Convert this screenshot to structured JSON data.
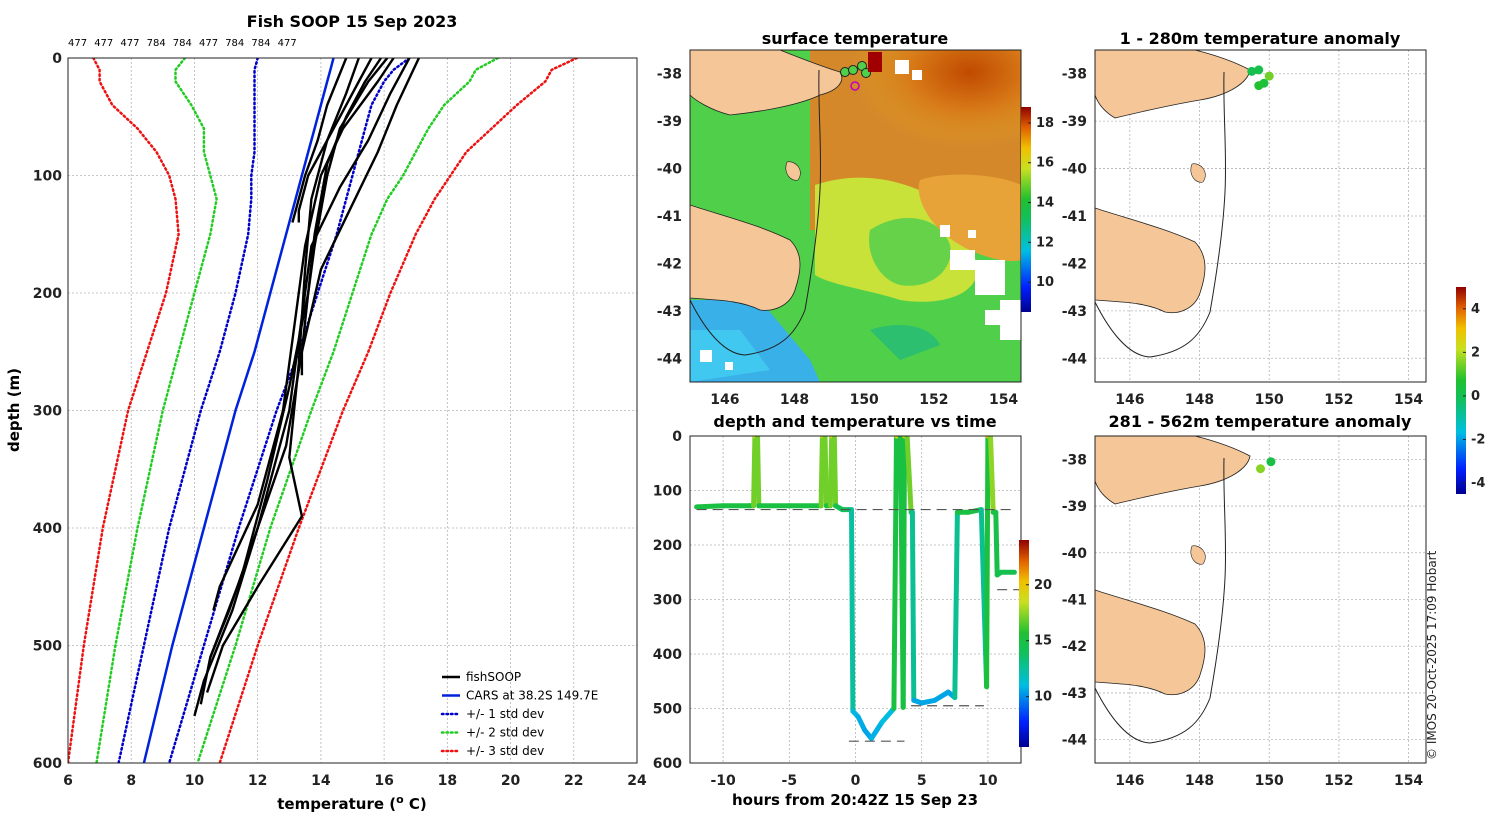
{
  "figure_title": "Fish SOOP 15 Sep 2023",
  "copyright": "© IMOS 20-Oct-2025 17:09 Hobart",
  "colors": {
    "land": "#f5c697",
    "obs": "#000000",
    "cars": "#0022dd",
    "std1": "#0000cc",
    "std2": "#22cc22",
    "std3": "#ee1111"
  },
  "chart_data": [
    {
      "id": "profile",
      "type": "line",
      "title": "Fish SOOP 15 Sep 2023",
      "xlabel": "temperature (",
      "xlabel_sup": "o",
      "xlabel_end": " C)",
      "ylabel": "depth (m)",
      "xlim": [
        6,
        24
      ],
      "ylim": [
        0,
        600
      ],
      "xticks": [
        6,
        8,
        10,
        12,
        14,
        16,
        18,
        20,
        22,
        24
      ],
      "yticks": [
        0,
        100,
        200,
        300,
        400,
        500,
        600
      ],
      "top_labels": [
        "477",
        "477",
        "477",
        "784",
        "784",
        "477",
        "784",
        "784",
        "477"
      ],
      "legend": [
        "fishSOOP",
        "CARS at 38.2S 149.7E",
        "+/- 1 std dev",
        "+/- 2 std dev",
        "+/- 3 std dev"
      ],
      "depth": [
        0,
        10,
        20,
        40,
        60,
        80,
        100,
        120,
        150,
        200,
        250,
        300,
        400,
        500,
        600
      ],
      "cars_mean": [
        14.4,
        14.3,
        14.2,
        14.0,
        13.8,
        13.6,
        13.4,
        13.2,
        12.9,
        12.4,
        11.9,
        11.3,
        10.3,
        9.3,
        8.4
      ],
      "std1_low": [
        12.0,
        11.9,
        11.9,
        11.9,
        11.9,
        11.9,
        11.8,
        11.8,
        11.7,
        11.3,
        10.8,
        10.2,
        9.2,
        8.4,
        7.6
      ],
      "std1_high": [
        16.8,
        16.3,
        16.0,
        15.6,
        15.4,
        15.2,
        15.0,
        14.8,
        14.5,
        13.9,
        13.3,
        12.6,
        11.4,
        10.3,
        9.2
      ],
      "std2_low": [
        9.7,
        9.4,
        9.4,
        9.9,
        10.3,
        10.3,
        10.5,
        10.7,
        10.5,
        10.0,
        9.5,
        9.0,
        8.2,
        7.5,
        6.9
      ],
      "std2_high": [
        19.6,
        18.9,
        18.7,
        17.9,
        17.4,
        17.0,
        16.6,
        16.1,
        15.6,
        15.0,
        14.4,
        13.7,
        12.4,
        11.3,
        10.1
      ],
      "std3_low": [
        6.8,
        7.0,
        7.0,
        7.4,
        8.2,
        8.8,
        9.2,
        9.4,
        9.5,
        9.1,
        8.5,
        7.9,
        7.1,
        6.5,
        6.0
      ],
      "std3_high": [
        22.1,
        21.3,
        21.1,
        20.2,
        19.4,
        18.6,
        18.1,
        17.6,
        17.0,
        16.2,
        15.5,
        14.7,
        13.3,
        12.0,
        10.8
      ],
      "fish_profiles": [
        {
          "d": [
            0,
            20,
            40,
            70,
            100,
            130,
            140
          ],
          "t": [
            14.8,
            14.5,
            14.2,
            13.9,
            13.5,
            13.2,
            13.1
          ]
        },
        {
          "d": [
            0,
            20,
            50,
            80,
            100,
            130,
            140
          ],
          "t": [
            15.6,
            15.2,
            14.6,
            14.0,
            13.6,
            13.3,
            13.3
          ]
        },
        {
          "d": [
            0,
            20,
            50,
            90,
            150,
            200,
            250,
            270
          ],
          "t": [
            15.9,
            15.4,
            14.8,
            14.2,
            13.8,
            13.6,
            13.4,
            13.4
          ]
        },
        {
          "d": [
            0,
            20,
            60,
            100,
            160,
            220,
            300,
            380,
            450,
            470
          ],
          "t": [
            16.3,
            15.8,
            14.7,
            14.0,
            13.5,
            13.2,
            12.8,
            12.0,
            10.8,
            10.6
          ]
        },
        {
          "d": [
            0,
            30,
            70,
            110,
            160,
            220,
            300,
            400,
            470,
            510
          ],
          "t": [
            16.8,
            16.2,
            15.5,
            14.6,
            13.7,
            13.4,
            13.0,
            12.0,
            11.1,
            10.5
          ]
        },
        {
          "d": [
            0,
            40,
            80,
            130,
            180,
            250,
            330,
            400,
            470,
            530,
            560
          ],
          "t": [
            17.1,
            16.4,
            15.8,
            14.9,
            14.0,
            13.4,
            12.9,
            12.0,
            11.2,
            10.3,
            10.0
          ]
        },
        {
          "d": [
            0,
            20,
            60,
            100,
            160,
            200,
            280,
            360,
            440,
            510,
            550
          ],
          "t": [
            16.1,
            15.5,
            14.6,
            14.2,
            13.8,
            13.6,
            13.0,
            12.3,
            11.5,
            10.5,
            10.2
          ]
        },
        {
          "d": [
            0,
            30,
            70,
            120,
            180,
            260,
            340,
            390,
            450,
            500,
            540
          ],
          "t": [
            15.2,
            14.8,
            14.2,
            13.7,
            13.5,
            13.3,
            13.0,
            13.4,
            12.0,
            10.9,
            10.4
          ]
        }
      ]
    },
    {
      "id": "sst_map",
      "type": "heatmap",
      "title": "surface temperature",
      "xticks": [
        "146",
        "148",
        "150",
        "152",
        "154"
      ],
      "yticks": [
        "-38",
        "-39",
        "-40",
        "-41",
        "-42",
        "-43",
        "-44"
      ],
      "xlim": [
        145,
        154.5
      ],
      "ylim": [
        -44.5,
        -37.5
      ],
      "colorbar_ticks": [
        "10",
        "12",
        "14",
        "16",
        "18"
      ],
      "colorbar_range": [
        8.5,
        18.8
      ]
    },
    {
      "id": "depth_time",
      "type": "line",
      "title": "depth and temperature vs time",
      "xlabel": "hours from 20:42Z 15 Sep 23",
      "xlim": [
        -12.5,
        12.5
      ],
      "ylim": [
        0,
        600
      ],
      "xticks": [
        -10,
        -5,
        0,
        5,
        10
      ],
      "yticks": [
        0,
        100,
        200,
        300,
        400,
        500,
        600
      ],
      "colorbar_ticks": [
        "10",
        "15",
        "20"
      ],
      "colorbar_range": [
        5.5,
        24
      ],
      "track_hours": [
        -12.0,
        -10,
        -8,
        -7.7,
        -7.6,
        -7.4,
        -7.3,
        -5,
        -2.6,
        -2.5,
        -2.3,
        -2.2,
        -1.9,
        -1.8,
        -1.6,
        -1.5,
        -1.0,
        -0.5,
        -0.3,
        -0.2,
        0.2,
        0.7,
        1.2,
        2.0,
        2.9,
        3.1,
        3.4,
        3.6,
        3.7,
        3.9,
        4.2,
        4.3,
        4.4,
        5.0,
        6.0,
        7.0,
        7.5,
        7.7,
        7.9,
        8.5,
        9.5,
        9.9,
        10.0,
        10.2,
        10.4,
        10.6,
        10.7,
        11.0,
        12.0
      ],
      "track_depth": [
        130,
        128,
        128,
        128,
        0,
        0,
        128,
        128,
        128,
        0,
        0,
        128,
        128,
        0,
        0,
        128,
        135,
        135,
        135,
        505,
        515,
        540,
        555,
        525,
        500,
        0,
        0,
        498,
        0,
        0,
        140,
        140,
        485,
        490,
        485,
        470,
        480,
        140,
        140,
        140,
        135,
        460,
        0,
        0,
        140,
        140,
        255,
        250,
        250
      ],
      "track_temp": [
        15,
        15,
        15,
        15,
        19,
        19,
        15,
        15,
        15,
        19,
        19,
        15,
        15,
        19,
        19,
        15,
        14,
        14,
        14,
        11,
        10.8,
        10.5,
        10.5,
        11,
        11,
        19,
        19,
        11,
        19,
        19,
        15,
        15,
        10.5,
        10.5,
        10.5,
        10.5,
        10.5,
        15,
        15,
        15,
        15,
        10.5,
        20,
        20,
        15,
        15,
        14.5,
        14.5,
        14.5
      ],
      "ref_dashes": [
        {
          "x": [
            -12,
            12
          ],
          "y": [
            135,
            135
          ]
        },
        {
          "x": [
            -0.5,
            3.7
          ],
          "y": [
            560,
            560
          ]
        },
        {
          "x": [
            4.2,
            9.7
          ],
          "y": [
            495,
            495
          ]
        },
        {
          "x": [
            10.7,
            12.5
          ],
          "y": [
            282,
            282
          ]
        }
      ]
    },
    {
      "id": "anom_shallow",
      "type": "scatter",
      "title": "1 - 280m temperature anomaly",
      "xticks": [
        "146",
        "148",
        "150",
        "152",
        "154"
      ],
      "yticks": [
        "-38",
        "-39",
        "-40",
        "-41",
        "-42",
        "-43",
        "-44"
      ],
      "xlim": [
        145,
        154.5
      ],
      "ylim": [
        -44.5,
        -37.5
      ],
      "points": [
        {
          "lon": 149.5,
          "lat": -37.95,
          "anom": 0.1
        },
        {
          "lon": 149.7,
          "lat": -37.92,
          "anom": 0.2
        },
        {
          "lon": 150.0,
          "lat": -38.05,
          "anom": 1.4
        },
        {
          "lon": 149.85,
          "lat": -38.2,
          "anom": 0.5
        },
        {
          "lon": 149.7,
          "lat": -38.25,
          "anom": 0.7
        }
      ]
    },
    {
      "id": "anom_deep",
      "type": "scatter",
      "title": "281 - 562m temperature anomaly",
      "xticks": [
        "146",
        "148",
        "150",
        "152",
        "154"
      ],
      "yticks": [
        "-38",
        "-39",
        "-40",
        "-41",
        "-42",
        "-43",
        "-44"
      ],
      "xlim": [
        145,
        154.5
      ],
      "ylim": [
        -44.5,
        -37.5
      ],
      "points": [
        {
          "lon": 149.75,
          "lat": -38.2,
          "anom": 1.6
        },
        {
          "lon": 150.05,
          "lat": -38.05,
          "anom": 0.3
        }
      ]
    },
    {
      "id": "anom_colorbar",
      "type": "heatmap",
      "colorbar_ticks": [
        "-4",
        "-2",
        "0",
        "2",
        "4"
      ],
      "colorbar_range": [
        -4.5,
        5
      ]
    }
  ]
}
